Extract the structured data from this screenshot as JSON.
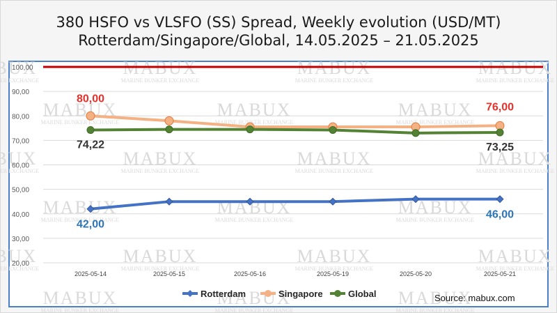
{
  "chart_data": {
    "type": "line",
    "title": "380 HSFO vs VLSFO (SS) Spread, Weekly evolution (USD/MT)",
    "subtitle": "Rotterdam/Singapore/Global, 14.05.2025 – 21.05.2025",
    "categories": [
      "2025-05-14",
      "2025-05-15",
      "2025-05-16",
      "2025-05-19",
      "2025-05-20",
      "2025-05-21"
    ],
    "ylim": [
      20,
      100
    ],
    "yticks": [
      20,
      30,
      40,
      50,
      60,
      70,
      80,
      90,
      100
    ],
    "ytick_labels": [
      "20,00",
      "30,00",
      "40,00",
      "50,00",
      "60,00",
      "70,00",
      "80,00",
      "90,00",
      "100,00"
    ],
    "grid": true,
    "reference_line": {
      "value": 100,
      "color": "#c00000"
    },
    "legend_position": "bottom",
    "series": [
      {
        "name": "Rotterdam",
        "color": "#4472c4",
        "marker": "diamond",
        "values": [
          42,
          45,
          45,
          45,
          46,
          46
        ]
      },
      {
        "name": "Singapore",
        "color": "#f4b183",
        "marker": "circle",
        "values": [
          80,
          78,
          75.5,
          75.5,
          75.5,
          76
        ]
      },
      {
        "name": "Global",
        "color": "#548235",
        "marker": "circle",
        "values": [
          74.22,
          74.5,
          74.5,
          74.25,
          73,
          73.25
        ]
      }
    ],
    "annotations": [
      {
        "text": "80,00",
        "series": 1,
        "index": 0,
        "color": "#e8302a"
      },
      {
        "text": "76,00",
        "series": 1,
        "index": 5,
        "color": "#e8302a"
      },
      {
        "text": "74,22",
        "series": 2,
        "index": 0,
        "color": "#333333"
      },
      {
        "text": "73,25",
        "series": 2,
        "index": 5,
        "color": "#333333"
      },
      {
        "text": "42,00",
        "series": 0,
        "index": 0,
        "color": "#2e75b6"
      },
      {
        "text": "46,00",
        "series": 0,
        "index": 5,
        "color": "#2e75b6"
      }
    ]
  },
  "source": "Source: mabux.com",
  "watermark": {
    "brand": "MABUX",
    "tagline": "MARINE BUNKER EXCHANGE"
  }
}
